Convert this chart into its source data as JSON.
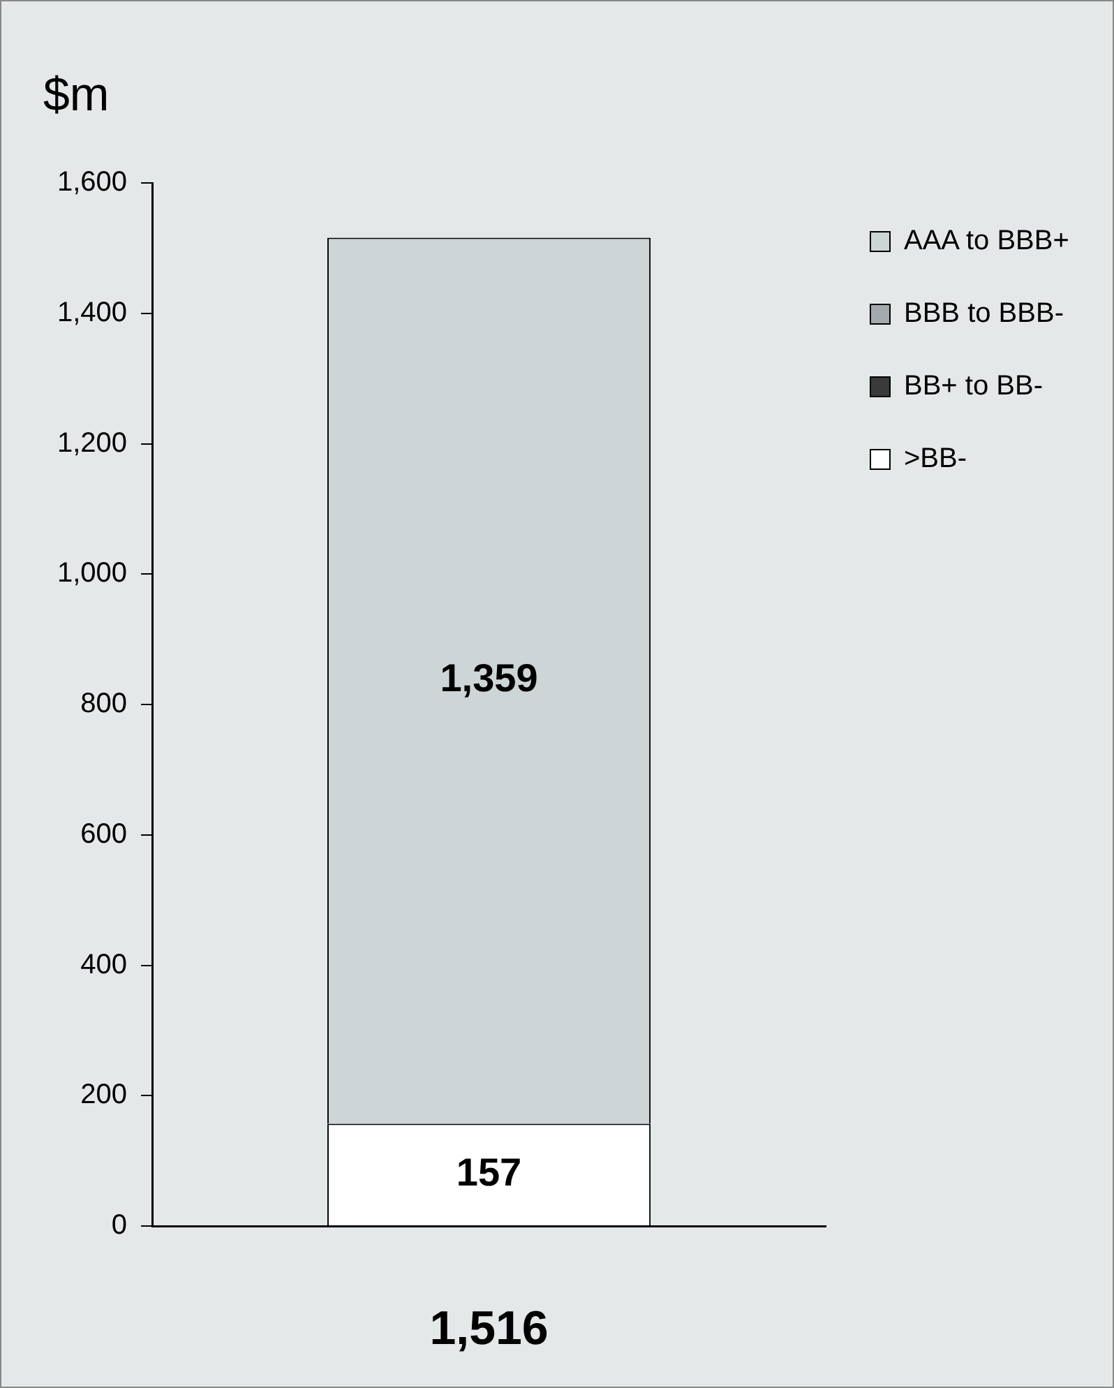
{
  "chart_data": {
    "type": "bar",
    "ylabel": "$m",
    "categories": [
      null
    ],
    "stacked": true,
    "series": [
      {
        "name": ">BB-",
        "color": "#ffffff",
        "values": [
          157
        ],
        "value_labels": [
          "157"
        ]
      },
      {
        "name": "BB+ to BB-",
        "color": "#3a3a3a",
        "values": [
          0
        ],
        "value_labels": [
          null
        ]
      },
      {
        "name": "BBB to BBB-",
        "color": "#a3aaad",
        "values": [
          0
        ],
        "value_labels": [
          null
        ]
      },
      {
        "name": "AAA to BBB+",
        "color": "#cdd5d6",
        "values": [
          1359
        ],
        "value_labels": [
          "1,359"
        ]
      }
    ],
    "ylim": [
      0,
      1600
    ],
    "yticks": [
      0,
      200,
      400,
      600,
      800,
      {
        "value": 1000,
        "label": "1,000"
      },
      {
        "value": 1200,
        "label": "1,200"
      },
      {
        "value": 1400,
        "label": "1,400"
      },
      {
        "value": 1600,
        "label": "1,600"
      }
    ],
    "totals": [
      "1,516"
    ],
    "legend": "right",
    "grid": false
  }
}
